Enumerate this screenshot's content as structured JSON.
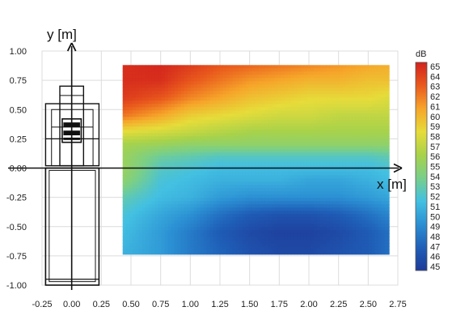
{
  "chart_data": {
    "type": "heatmap",
    "xlabel": "x [m]",
    "ylabel": "y [m]",
    "xlim": [
      -0.25,
      2.75
    ],
    "ylim": [
      -1.0,
      1.0
    ],
    "x_ticks": [
      "-0.25",
      "0.00",
      "0.25",
      "0.50",
      "0.75",
      "1.00",
      "1.25",
      "1.50",
      "1.75",
      "2.00",
      "2.25",
      "2.50",
      "2.75"
    ],
    "y_ticks": [
      "1.00",
      "0.75",
      "0.50",
      "0.25",
      "0.00",
      "-0.25",
      "-0.50",
      "-0.75",
      "-1.00"
    ],
    "grid": true,
    "map_extent": {
      "x": [
        0.43,
        2.68
      ],
      "y": [
        -0.74,
        0.88
      ]
    },
    "colorbar": {
      "unit": "dB",
      "min": 45,
      "max": 65,
      "ticks": [
        "65",
        "64",
        "63",
        "62",
        "61",
        "60",
        "59",
        "58",
        "57",
        "56",
        "55",
        "54",
        "53",
        "52",
        "51",
        "50",
        "49",
        "48",
        "47",
        "46",
        "45"
      ],
      "colors": [
        "#1e3a98",
        "#1f5fb8",
        "#2b8fd3",
        "#43c0e2",
        "#78cf8a",
        "#a8d24a",
        "#e6dc3a",
        "#f6a52a",
        "#e95a1d",
        "#d2221d"
      ]
    },
    "field_grid": {
      "x": [
        0.43,
        0.75,
        1.0,
        1.25,
        1.5,
        1.75,
        2.0,
        2.25,
        2.5,
        2.68
      ],
      "y": [
        0.88,
        0.75,
        0.6,
        0.45,
        0.3,
        0.2,
        0.1,
        0.0,
        -0.1,
        -0.25,
        -0.4,
        -0.55,
        -0.74
      ],
      "values_db": [
        [
          64.5,
          64.8,
          64.0,
          63.0,
          62.5,
          62.0,
          61.5,
          61.0,
          60.5,
          60.2
        ],
        [
          64.5,
          64.5,
          63.0,
          62.0,
          61.0,
          60.5,
          60.0,
          60.0,
          59.5,
          59.5
        ],
        [
          64.0,
          63.0,
          61.5,
          60.5,
          59.5,
          59.0,
          58.5,
          58.5,
          58.5,
          58.0
        ],
        [
          62.0,
          60.5,
          59.0,
          58.5,
          58.0,
          57.5,
          57.5,
          57.0,
          57.0,
          57.0
        ],
        [
          58.0,
          57.5,
          57.0,
          56.5,
          56.0,
          56.0,
          56.0,
          56.0,
          56.0,
          56.0
        ],
        [
          56.0,
          55.5,
          55.0,
          55.0,
          55.0,
          55.0,
          55.0,
          55.0,
          55.0,
          55.0
        ],
        [
          55.5,
          53.5,
          53.0,
          52.5,
          52.5,
          52.5,
          52.5,
          52.5,
          52.5,
          53.0
        ],
        [
          55.5,
          52.5,
          52.0,
          51.5,
          51.5,
          51.5,
          51.5,
          51.5,
          51.5,
          52.0
        ],
        [
          55.0,
          52.0,
          51.5,
          51.0,
          51.0,
          51.0,
          50.5,
          50.5,
          51.0,
          51.5
        ],
        [
          53.0,
          51.5,
          51.0,
          50.0,
          49.5,
          49.5,
          49.5,
          49.5,
          50.0,
          50.5
        ],
        [
          52.0,
          50.5,
          49.5,
          48.0,
          47.0,
          46.5,
          46.5,
          47.0,
          48.0,
          49.0
        ],
        [
          51.5,
          50.0,
          48.5,
          47.0,
          46.0,
          45.5,
          45.5,
          46.0,
          47.0,
          48.0
        ],
        [
          51.0,
          50.0,
          48.5,
          47.5,
          46.5,
          46.0,
          46.0,
          46.5,
          47.0,
          48.0
        ]
      ]
    }
  }
}
